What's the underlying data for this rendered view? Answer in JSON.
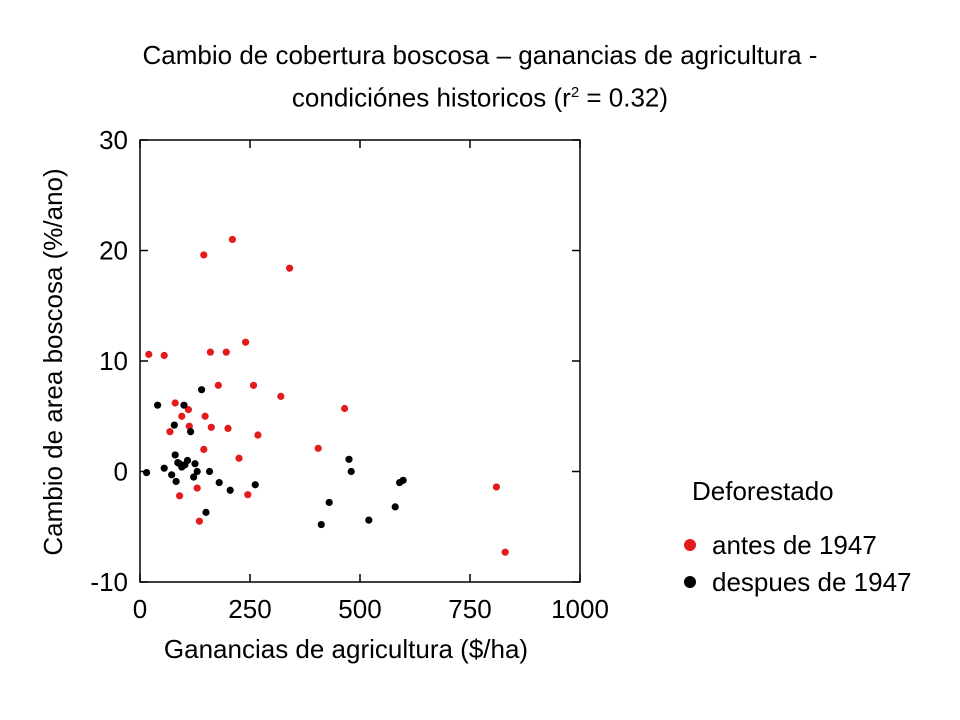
{
  "chart_data": {
    "type": "scatter",
    "title": {
      "line1": "Cambio de cobertura boscosa – ganancias de agricultura -",
      "line2_prefix": "condiciónes historicos (r",
      "line2_sup": "2",
      "line2_suffix": " = 0.32)"
    },
    "xlabel": "Ganancias de agricultura ($/ha)",
    "ylabel": "Cambio de area boscosa (%/ano)",
    "xlim": [
      0,
      1000
    ],
    "ylim": [
      -10,
      30
    ],
    "xticks": [
      0,
      250,
      500,
      750,
      1000
    ],
    "yticks": [
      -10,
      0,
      10,
      20,
      30
    ],
    "grid": false,
    "legend": {
      "title": "Deforestado",
      "placement": "right"
    },
    "series": [
      {
        "name": "antes de 1947",
        "color": "#e31b1b",
        "points": [
          [
            20,
            10.6
          ],
          [
            55,
            10.5
          ],
          [
            68,
            3.6
          ],
          [
            80,
            6.2
          ],
          [
            90,
            -2.2
          ],
          [
            95,
            5.0
          ],
          [
            110,
            5.6
          ],
          [
            112,
            4.1
          ],
          [
            130,
            -1.5
          ],
          [
            135,
            -4.5
          ],
          [
            145,
            19.6
          ],
          [
            145,
            2.0
          ],
          [
            148,
            5.0
          ],
          [
            160,
            10.8
          ],
          [
            162,
            4.0
          ],
          [
            178,
            7.8
          ],
          [
            196,
            10.8
          ],
          [
            200,
            3.9
          ],
          [
            210,
            21.0
          ],
          [
            225,
            1.2
          ],
          [
            240,
            11.7
          ],
          [
            245,
            -2.1
          ],
          [
            258,
            7.8
          ],
          [
            268,
            3.3
          ],
          [
            320,
            6.8
          ],
          [
            340,
            18.4
          ],
          [
            405,
            2.1
          ],
          [
            465,
            5.7
          ],
          [
            810,
            -1.4
          ],
          [
            830,
            -7.3
          ]
        ]
      },
      {
        "name": "despues de 1947",
        "color": "#000000",
        "points": [
          [
            15,
            -0.1
          ],
          [
            40,
            6.0
          ],
          [
            55,
            0.3
          ],
          [
            72,
            -0.3
          ],
          [
            78,
            4.2
          ],
          [
            80,
            1.5
          ],
          [
            82,
            -0.9
          ],
          [
            86,
            0.8
          ],
          [
            90,
            0.7
          ],
          [
            95,
            0.4
          ],
          [
            100,
            6.0
          ],
          [
            102,
            0.6
          ],
          [
            108,
            1.0
          ],
          [
            115,
            3.6
          ],
          [
            122,
            -0.5
          ],
          [
            125,
            0.7
          ],
          [
            130,
            0.0
          ],
          [
            140,
            7.4
          ],
          [
            150,
            -3.7
          ],
          [
            158,
            0.0
          ],
          [
            180,
            -1.0
          ],
          [
            205,
            -1.7
          ],
          [
            262,
            -1.2
          ],
          [
            412,
            -4.8
          ],
          [
            430,
            -2.8
          ],
          [
            475,
            1.1
          ],
          [
            480,
            0.0
          ],
          [
            520,
            -4.4
          ],
          [
            580,
            -3.2
          ],
          [
            590,
            -1.0
          ],
          [
            598,
            -0.8
          ]
        ]
      }
    ]
  }
}
